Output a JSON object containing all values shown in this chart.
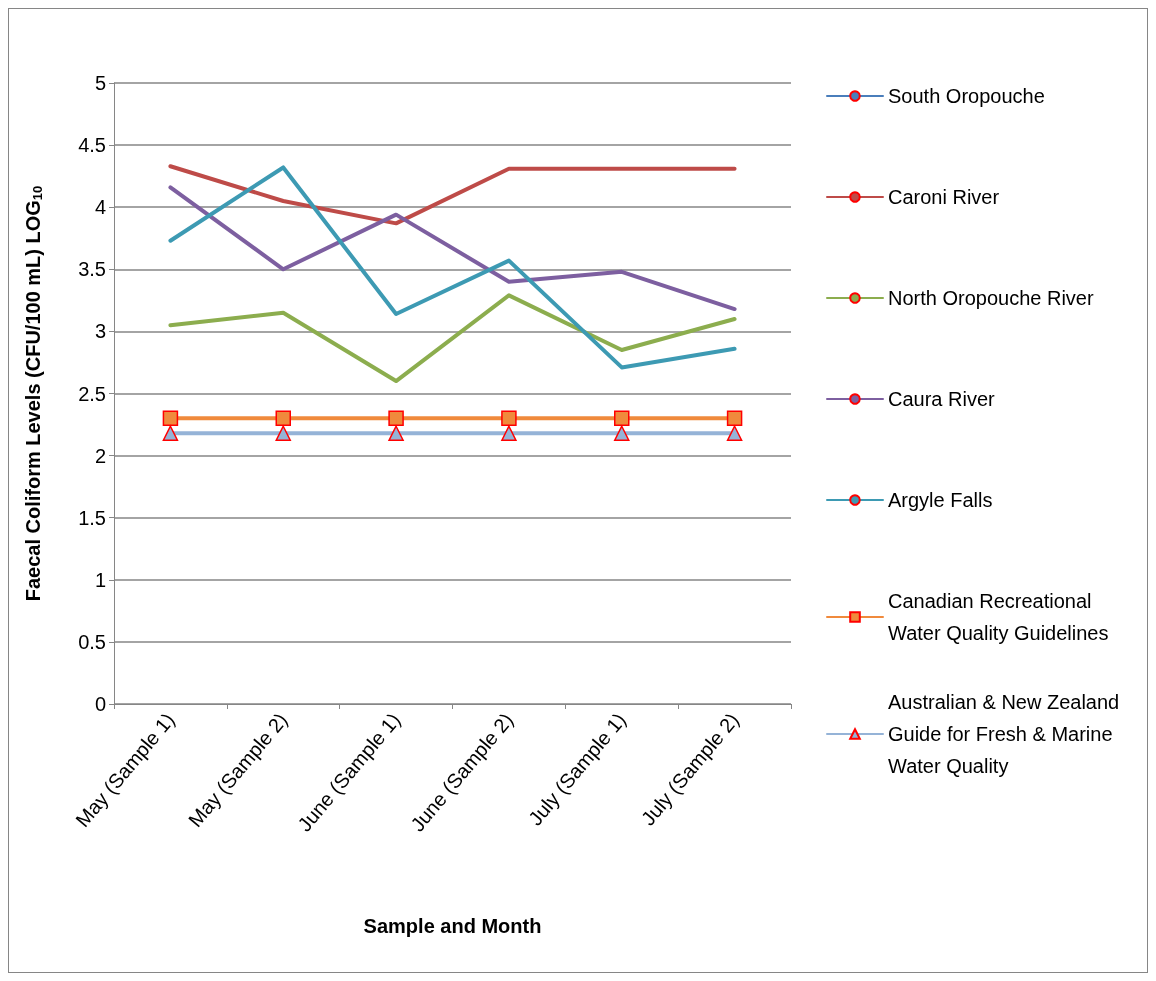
{
  "chart_data": {
    "type": "line",
    "xlabel": "Sample and Month",
    "ylabel": "Faecal Coliform Levels (CFU/100 mL) LOG$_{10}$",
    "categories": [
      "May (Sample 1)",
      "May (Sample 2)",
      "June (Sample 1)",
      "June (Sample 2)",
      "July (Sample 1)",
      "July (Sample 2)"
    ],
    "series": [
      {
        "name": "South Oropouche",
        "color": "#4a7ebb",
        "values": [
          null,
          null,
          null,
          null,
          null,
          null
        ]
      },
      {
        "name": "Caroni River",
        "color": "#be4b48",
        "values": [
          4.33,
          4.05,
          3.87,
          4.31,
          4.31,
          4.31
        ]
      },
      {
        "name": "North Oropouche River",
        "color": "#8cad4e",
        "values": [
          3.05,
          3.15,
          2.6,
          3.29,
          2.85,
          3.1
        ]
      },
      {
        "name": "Caura River",
        "color": "#7d5fa0",
        "values": [
          4.16,
          3.5,
          3.94,
          3.4,
          3.48,
          3.18
        ]
      },
      {
        "name": "Argyle Falls",
        "color": "#3d9ab3",
        "values": [
          3.73,
          4.32,
          3.14,
          3.57,
          2.71,
          2.86
        ]
      },
      {
        "name": "Canadian Recreational Water Quality Guidelines",
        "color": "#f08a3c",
        "marker": "square",
        "values": [
          2.3,
          2.3,
          2.3,
          2.3,
          2.3,
          2.3
        ]
      },
      {
        "name": "Australian & New Zealand Guide for Fresh & Marine Water Quality",
        "color": "#95b3d7",
        "marker": "triangle",
        "values": [
          2.18,
          2.18,
          2.18,
          2.18,
          2.18,
          2.18
        ]
      }
    ],
    "ylim": [
      0,
      5
    ],
    "yticks": [
      0,
      0.5,
      1,
      1.5,
      2,
      2.5,
      3,
      3.5,
      4,
      4.5,
      5
    ],
    "grid": "y",
    "legend": "right",
    "marker": "none",
    "line_style": "solid"
  }
}
